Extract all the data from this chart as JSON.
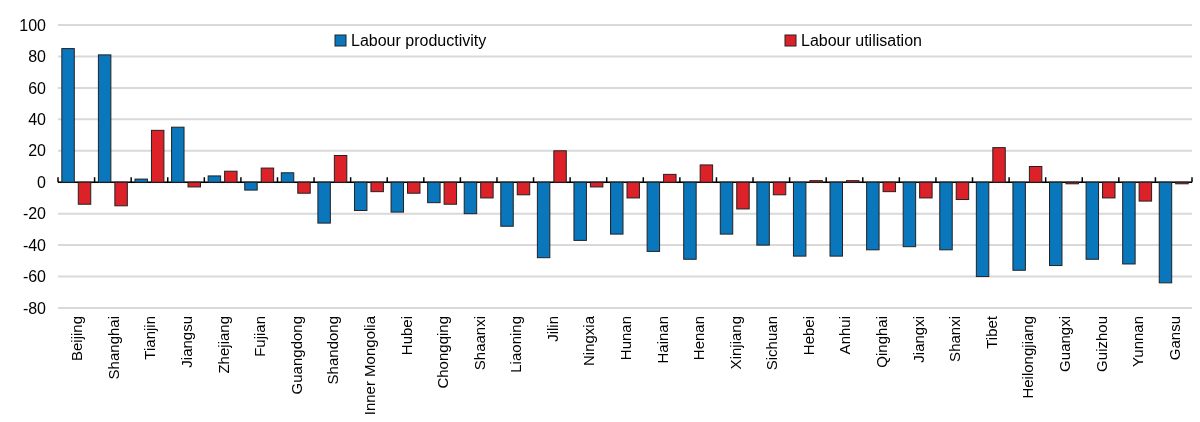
{
  "chart_data": {
    "type": "bar",
    "categories": [
      "Beijing",
      "Shanghai",
      "Tianjin",
      "Jiangsu",
      "Zhejiang",
      "Fujian",
      "Guangdong",
      "Shandong",
      "Inner Mongolia",
      "Hubei",
      "Chongqing",
      "Shaanxi",
      "Liaoning",
      "Jilin",
      "Ningxia",
      "Hunan",
      "Hainan",
      "Henan",
      "Xinjiang",
      "Sichuan",
      "Hebei",
      "Anhui",
      "Qinghai",
      "Jiangxi",
      "Shanxi",
      "Tibet",
      "Heilongjiang",
      "Guangxi",
      "Guizhou",
      "Yunnan",
      "Gansu"
    ],
    "series": [
      {
        "name": "Labour productivity",
        "color": "#0a77bd",
        "values": [
          85,
          81,
          2,
          35,
          4,
          -5,
          6,
          -26,
          -18,
          -19,
          -13,
          -20,
          -28,
          -48,
          -37,
          -33,
          -44,
          -49,
          -33,
          -40,
          -47,
          -47,
          -43,
          -41,
          -43,
          -60,
          -56,
          -53,
          -49,
          -52,
          -64
        ]
      },
      {
        "name": "Labour utilisation",
        "color": "#dc2128",
        "values": [
          -14,
          -15,
          33,
          -3,
          7,
          9,
          -7,
          17,
          -6,
          -7,
          -14,
          -10,
          -8,
          20,
          -3,
          -10,
          5,
          11,
          -17,
          -8,
          1,
          1,
          -6,
          -10,
          -11,
          22,
          10,
          -1,
          -10,
          -12,
          -1
        ]
      }
    ],
    "ylim": [
      -80,
      100
    ],
    "yticks": [
      -80,
      -60,
      -40,
      -20,
      0,
      20,
      40,
      60,
      80,
      100
    ],
    "grid": "y",
    "legend": "top"
  }
}
